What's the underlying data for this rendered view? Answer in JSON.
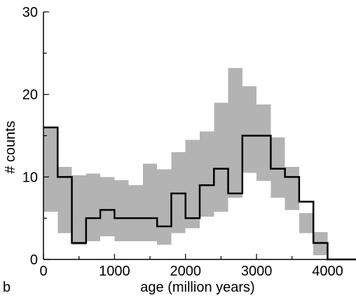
{
  "chart_data": {
    "type": "histogram",
    "panel_label": "b",
    "xlabel": "age (million years)",
    "ylabel": "# counts",
    "xlim": [
      0,
      4400
    ],
    "ylim": [
      0,
      30
    ],
    "x_ticks": [
      0,
      1000,
      2000,
      3000,
      4000
    ],
    "x_tick_labels": [
      "0",
      "1000",
      "2000",
      "3000",
      "4000"
    ],
    "y_ticks": [
      0,
      10,
      20,
      30
    ],
    "y_tick_labels": [
      "0",
      "10",
      "20",
      "30"
    ],
    "x_minor_ticks": [
      500,
      1500,
      2500,
      3500
    ],
    "y_minor_ticks": [
      5,
      15,
      25
    ],
    "bin_edges": [
      0,
      200,
      400,
      600,
      800,
      1000,
      1200,
      1400,
      1600,
      1800,
      2000,
      2200,
      2400,
      2600,
      2800,
      3000,
      3200,
      3400,
      3600,
      3800,
      4000,
      4200,
      4400
    ],
    "counts": [
      16,
      10,
      2,
      5,
      6,
      5,
      5,
      5,
      4,
      8,
      5,
      9,
      11,
      8,
      15,
      15,
      11,
      10,
      7,
      2,
      0,
      0
    ],
    "band_lower": [
      5.8,
      3.2,
      1.8,
      2.2,
      2.8,
      2.2,
      2.2,
      2.2,
      1.8,
      3.2,
      3.8,
      5.2,
      5.8,
      7.5,
      10.5,
      9.5,
      7.5,
      6.0,
      3.2,
      0.5,
      0.0,
      0.0
    ],
    "band_upper": [
      16.0,
      11.2,
      10.2,
      10.4,
      10.0,
      9.6,
      9.0,
      11.6,
      10.9,
      13.0,
      14.5,
      15.5,
      19.0,
      23.2,
      21.0,
      18.8,
      14.8,
      11.2,
      5.6,
      3.3,
      0.0,
      0.0
    ],
    "colors": {
      "band": "#b3b3b3",
      "line": "#000000",
      "axis": "#000000"
    }
  }
}
